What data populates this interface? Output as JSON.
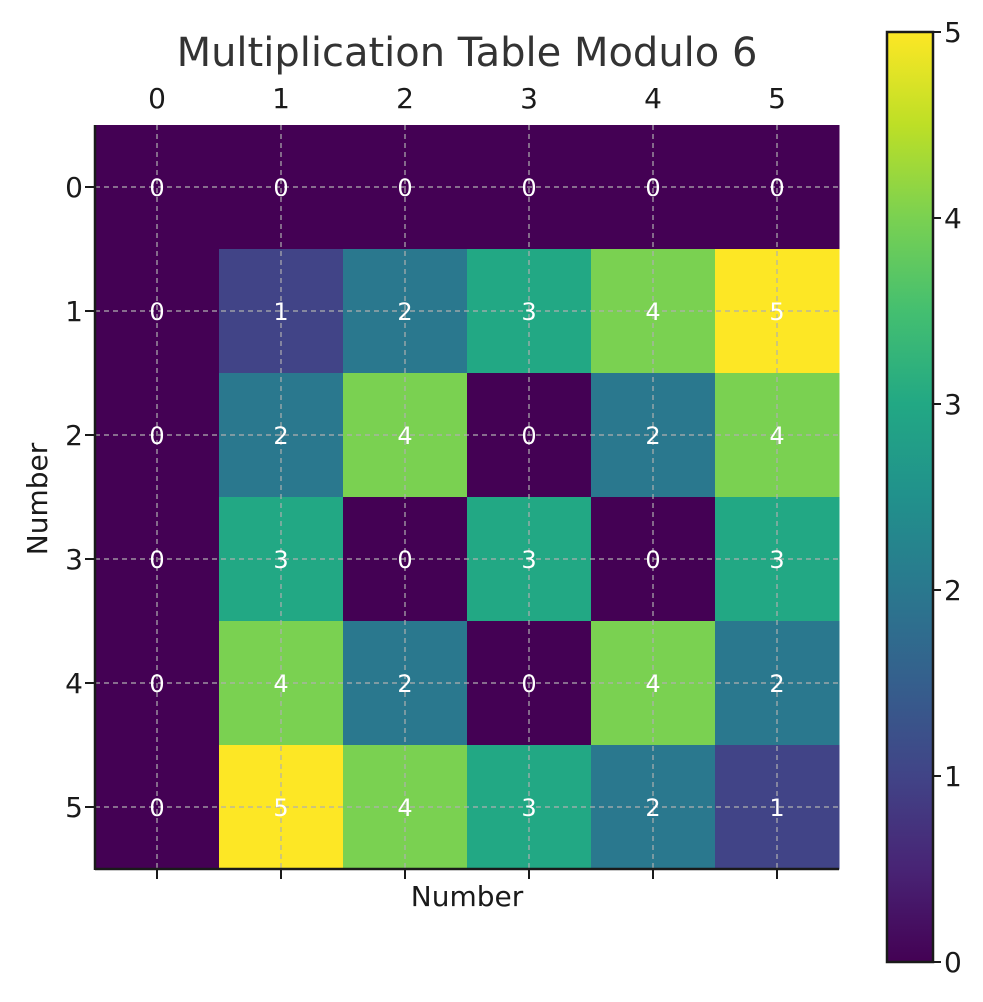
{
  "chart_data": {
    "type": "heatmap",
    "title": "Multiplication Table Modulo 6",
    "xlabel": "Number",
    "ylabel": "Number",
    "x_categories": [
      "0",
      "1",
      "2",
      "3",
      "4",
      "5"
    ],
    "y_categories": [
      "0",
      "1",
      "2",
      "3",
      "4",
      "5"
    ],
    "values": [
      [
        0,
        0,
        0,
        0,
        0,
        0
      ],
      [
        0,
        1,
        2,
        3,
        4,
        5
      ],
      [
        0,
        2,
        4,
        0,
        2,
        4
      ],
      [
        0,
        3,
        0,
        3,
        0,
        3
      ],
      [
        0,
        4,
        2,
        0,
        4,
        2
      ],
      [
        0,
        5,
        4,
        3,
        2,
        1
      ]
    ],
    "colormap": "viridis",
    "color_range": [
      0,
      5
    ],
    "colorbar_ticks": [
      "0",
      "1",
      "2",
      "3",
      "4",
      "5"
    ],
    "x_axis_position": "top",
    "grid": true
  }
}
